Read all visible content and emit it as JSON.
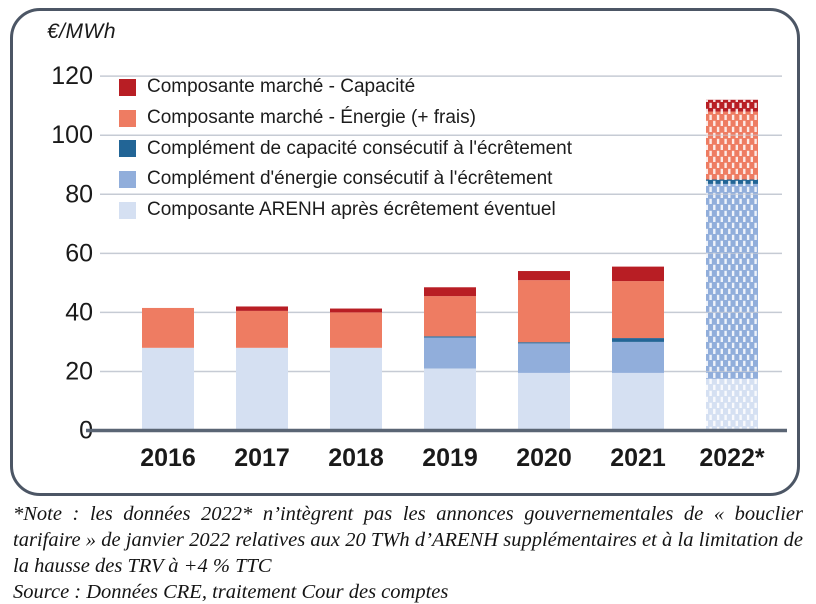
{
  "panel": {
    "unit_label": "€/MWh"
  },
  "legend": [
    {
      "label": "Composante marché - Capacité",
      "color": "#b81e24"
    },
    {
      "label": "Composante marché - Énergie (+ frais)",
      "color": "#ee7c62"
    },
    {
      "label": "Complément de capacité consécutif à l'écrêtement",
      "color": "#226596"
    },
    {
      "label": "Complément d'énergie consécutif à l'écrêtement",
      "color": "#91aedb"
    },
    {
      "label": "Composante ARENH après écrêtement éventuel",
      "color": "#d5e0f2"
    }
  ],
  "chart_data": {
    "type": "bar",
    "stacked": true,
    "unit": "€/MWh",
    "ylim": [
      0,
      120
    ],
    "ytick_step": 20,
    "grid": true,
    "legend_position": "top-left-inside",
    "categories": [
      "2016",
      "2017",
      "2018",
      "2019",
      "2020",
      "2021",
      "2022*"
    ],
    "hatched_category": "2022*",
    "series": [
      {
        "name": "Composante ARENH après écrêtement éventuel",
        "color": "#d5e0f2",
        "values": [
          28,
          28,
          28,
          21,
          19.5,
          19.5,
          17.5
        ]
      },
      {
        "name": "Complément d'énergie consécutif à l'écrêtement",
        "color": "#91aedb",
        "values": [
          0,
          0,
          0,
          10.5,
          10,
          10.5,
          66
        ]
      },
      {
        "name": "Complément de capacité consécutif à l'écrêtement",
        "color": "#226596",
        "values": [
          0,
          0,
          0,
          0.4,
          0.4,
          1.3,
          1.5
        ]
      },
      {
        "name": "Composante marché - Énergie (+ frais)",
        "color": "#ee7c62",
        "values": [
          13.5,
          12.5,
          12,
          13.6,
          21,
          19.3,
          23
        ]
      },
      {
        "name": "Composante marché - Capacité",
        "color": "#b81e24",
        "values": [
          0,
          1.5,
          1.3,
          3,
          3.1,
          4.9,
          4
        ]
      }
    ],
    "totals": [
      41.5,
      42,
      41.3,
      48.5,
      54,
      55.5,
      112
    ]
  },
  "note": {
    "text": "*Note : les données 2022* n’intègrent pas les annonces gouvernementales de « bouclier tarifaire » de janvier 2022 relatives aux 20 TWh d’ARENH supplémentaires et à la limitation de la hausse des TRV à +4 % TTC",
    "source": "Source : Données CRE, traitement Cour des comptes"
  },
  "colors": {
    "panel_border": "#4c5665",
    "gridline": "#c6cbd4",
    "axis_line": "#5a6574",
    "tick_text": "#1a1a1a"
  }
}
